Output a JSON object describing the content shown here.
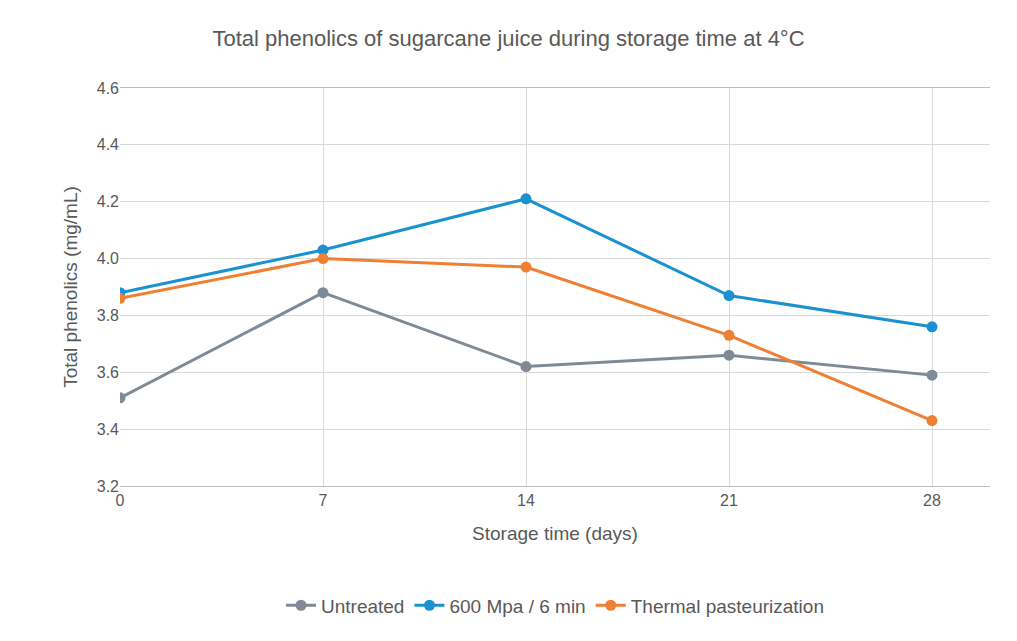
{
  "chart_data": {
    "type": "line",
    "title": "Total phenolics of sugarcane juice during storage time at 4°C",
    "x_label": "Storage time (days)",
    "y_label": "Total phenolics (mg/mL)",
    "x": [
      0,
      7,
      14,
      21,
      28
    ],
    "series": [
      {
        "name": "Untreated",
        "color": "#7e8b96",
        "values": [
          3.51,
          3.88,
          3.62,
          3.66,
          3.59
        ]
      },
      {
        "name": "600 Mpa / 6 min",
        "color": "#1a91d0",
        "values": [
          3.88,
          4.03,
          4.21,
          3.87,
          3.76
        ]
      },
      {
        "name": "Thermal pasteurization",
        "color": "#ee7f33",
        "values": [
          3.86,
          4.0,
          3.97,
          3.73,
          3.43
        ]
      }
    ],
    "xlim": [
      0,
      30
    ],
    "xticks": [
      0,
      7,
      14,
      21,
      28
    ],
    "ylim": [
      3.2,
      4.6
    ],
    "yticks": [
      3.2,
      3.4,
      3.6,
      3.8,
      {
        "value": 4,
        "label": "4.0"
      },
      4.2,
      4.4,
      4.6
    ],
    "grid": true,
    "legend": "bottom",
    "marker": "circle"
  }
}
